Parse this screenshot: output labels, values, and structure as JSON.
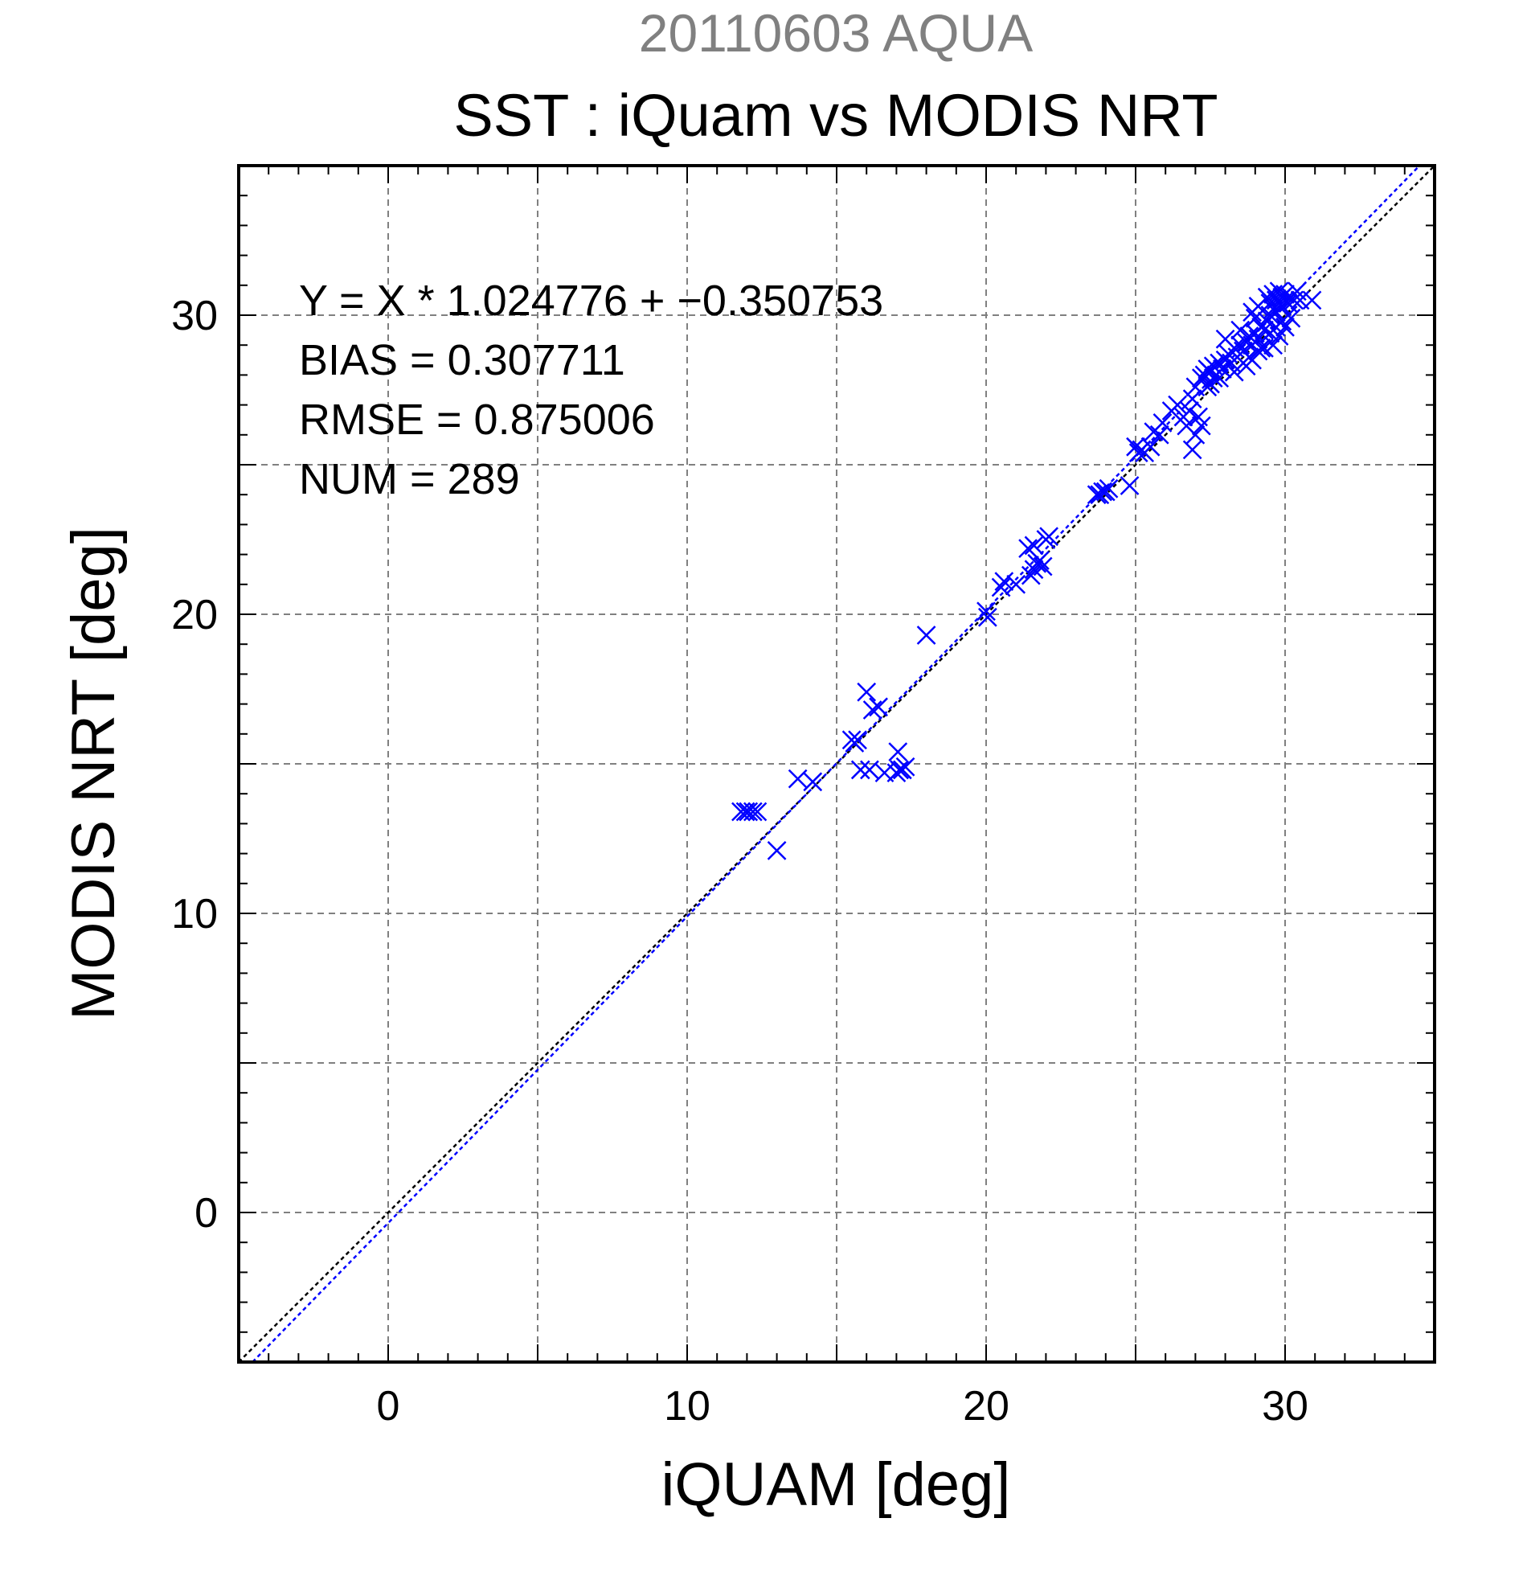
{
  "chart_data": {
    "type": "scatter",
    "title_top": "20110603 AQUA",
    "title": "SST : iQuam vs MODIS NRT",
    "xlabel": "iQUAM [deg]",
    "ylabel": "MODIS NRT [deg]",
    "xlim": [
      -5,
      35
    ],
    "ylim": [
      -5,
      35
    ],
    "x_ticks": [
      0,
      10,
      20,
      30
    ],
    "y_ticks": [
      0,
      10,
      20,
      30
    ],
    "grid_step": 5,
    "grid": true,
    "colors": {
      "points": "#0000ff",
      "fit_line": "#0000ff",
      "identity_line": "#000000",
      "title_top": "#808080"
    },
    "stats": {
      "equation": "Y = X * 1.024776 + −0.350753",
      "bias": "BIAS = 0.307711",
      "rmse": "RMSE = 0.875006",
      "num": "NUM = 289"
    },
    "fit": {
      "slope": 1.024776,
      "intercept": -0.350753
    },
    "series": [
      {
        "marker": "x",
        "points": [
          [
            11.8,
            13.4
          ],
          [
            11.95,
            13.4
          ],
          [
            12.05,
            13.4
          ],
          [
            12.2,
            13.4
          ],
          [
            12.35,
            13.4
          ],
          [
            13.0,
            12.1
          ],
          [
            13.7,
            14.5
          ],
          [
            14.2,
            14.4
          ],
          [
            15.5,
            15.8
          ],
          [
            15.6,
            15.7
          ],
          [
            15.7,
            15.8
          ],
          [
            15.8,
            14.8
          ],
          [
            16.1,
            14.8
          ],
          [
            16.0,
            17.4
          ],
          [
            16.2,
            16.8
          ],
          [
            16.4,
            16.9
          ],
          [
            16.6,
            14.7
          ],
          [
            17.0,
            14.7
          ],
          [
            17.1,
            14.8
          ],
          [
            17.2,
            14.8
          ],
          [
            17.05,
            15.4
          ],
          [
            17.3,
            14.9
          ],
          [
            18.0,
            19.3
          ],
          [
            20.0,
            20.1
          ],
          [
            20.05,
            19.9
          ],
          [
            20.5,
            20.9
          ],
          [
            20.6,
            21.1
          ],
          [
            21.0,
            21.0
          ],
          [
            21.5,
            21.3
          ],
          [
            21.6,
            21.5
          ],
          [
            21.4,
            22.2
          ],
          [
            21.6,
            22.3
          ],
          [
            21.7,
            21.7
          ],
          [
            21.8,
            21.8
          ],
          [
            22.0,
            22.5
          ],
          [
            22.1,
            22.6
          ],
          [
            21.9,
            21.6
          ],
          [
            23.7,
            24.0
          ],
          [
            23.8,
            24.0
          ],
          [
            23.9,
            24.1
          ],
          [
            24.0,
            24.1
          ],
          [
            24.1,
            24.2
          ],
          [
            24.8,
            24.3
          ],
          [
            25.1,
            25.4
          ],
          [
            25.2,
            25.5
          ],
          [
            25.0,
            25.6
          ],
          [
            25.3,
            25.4
          ],
          [
            25.5,
            25.6
          ],
          [
            25.6,
            26.1
          ],
          [
            25.8,
            26.0
          ],
          [
            25.9,
            26.4
          ],
          [
            26.2,
            26.8
          ],
          [
            26.4,
            27.0
          ],
          [
            26.6,
            26.6
          ],
          [
            26.8,
            26.8
          ],
          [
            26.7,
            26.3
          ],
          [
            26.9,
            25.5
          ],
          [
            27.0,
            26.0
          ],
          [
            27.1,
            26.6
          ],
          [
            27.2,
            26.3
          ],
          [
            26.9,
            27.2
          ],
          [
            27.0,
            27.6
          ],
          [
            27.2,
            27.9
          ],
          [
            27.3,
            28.0
          ],
          [
            27.4,
            28.2
          ],
          [
            27.5,
            28.1
          ],
          [
            27.6,
            28.3
          ],
          [
            27.7,
            28.0
          ],
          [
            27.8,
            28.4
          ],
          [
            27.9,
            28.2
          ],
          [
            28.0,
            28.5
          ],
          [
            28.1,
            28.7
          ],
          [
            28.2,
            28.4
          ],
          [
            28.3,
            28.9
          ],
          [
            28.4,
            28.6
          ],
          [
            28.5,
            29.0
          ],
          [
            28.6,
            28.8
          ],
          [
            28.7,
            29.1
          ],
          [
            28.8,
            29.3
          ],
          [
            28.9,
            29.0
          ],
          [
            29.0,
            29.4
          ],
          [
            29.1,
            29.2
          ],
          [
            29.2,
            29.6
          ],
          [
            29.3,
            29.5
          ],
          [
            29.4,
            29.8
          ],
          [
            29.5,
            30.0
          ],
          [
            29.6,
            30.2
          ],
          [
            29.7,
            30.1
          ],
          [
            29.8,
            30.4
          ],
          [
            29.9,
            30.3
          ],
          [
            30.0,
            30.5
          ],
          [
            30.1,
            30.4
          ],
          [
            30.2,
            30.6
          ],
          [
            30.3,
            30.5
          ],
          [
            29.4,
            30.6
          ],
          [
            29.6,
            30.7
          ],
          [
            29.8,
            30.8
          ],
          [
            30.0,
            30.7
          ],
          [
            29.5,
            29.4
          ],
          [
            29.7,
            29.6
          ],
          [
            29.9,
            29.8
          ],
          [
            30.1,
            30.0
          ],
          [
            28.9,
            28.5
          ],
          [
            29.1,
            28.8
          ],
          [
            29.3,
            28.9
          ],
          [
            28.6,
            28.4
          ],
          [
            28.3,
            28.1
          ],
          [
            27.8,
            27.9
          ],
          [
            27.5,
            27.7
          ],
          [
            28.9,
            30.1
          ],
          [
            29.1,
            30.3
          ],
          [
            30.5,
            30.5
          ],
          [
            30.9,
            30.5
          ],
          [
            28.0,
            29.2
          ],
          [
            28.5,
            29.5
          ],
          [
            29.0,
            29.9
          ],
          [
            27.4,
            27.6
          ],
          [
            27.6,
            27.9
          ],
          [
            29.6,
            29.0
          ],
          [
            29.8,
            29.3
          ],
          [
            30.0,
            29.6
          ],
          [
            30.2,
            29.9
          ],
          [
            29.2,
            28.9
          ],
          [
            28.7,
            28.3
          ],
          [
            28.8,
            28.6
          ],
          [
            29.5,
            30.4
          ],
          [
            29.7,
            30.5
          ],
          [
            29.9,
            30.6
          ],
          [
            30.4,
            30.8
          ]
        ]
      }
    ]
  }
}
